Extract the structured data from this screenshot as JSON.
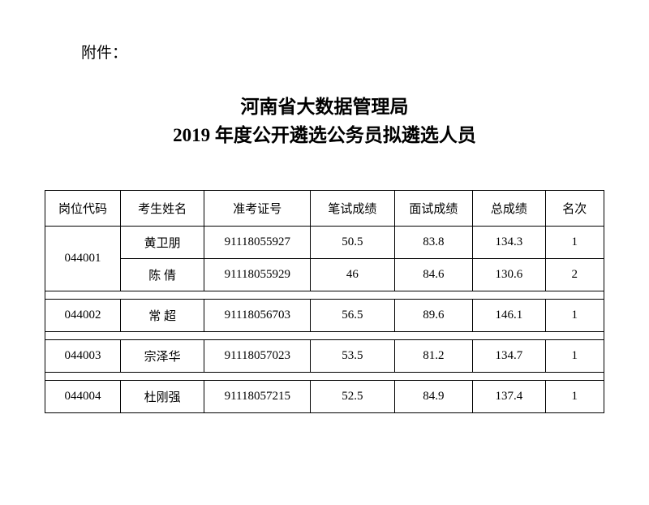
{
  "attachment_label": "附件：",
  "title_line1": "河南省大数据管理局",
  "title_line2": "2019 年度公开遴选公务员拟遴选人员",
  "columns": {
    "code": "岗位代码",
    "name": "考生姓名",
    "exam_no": "准考证号",
    "written": "笔试成绩",
    "interview": "面试成绩",
    "total": "总成绩",
    "rank": "名次"
  },
  "groups": [
    {
      "code": "044001",
      "rows": [
        {
          "name": "黄卫朋",
          "exam_no": "91118055927",
          "written": "50.5",
          "interview": "83.8",
          "total": "134.3",
          "rank": "1"
        },
        {
          "name": "陈 倩",
          "exam_no": "91118055929",
          "written": "46",
          "interview": "84.6",
          "total": "130.6",
          "rank": "2"
        }
      ]
    },
    {
      "code": "044002",
      "rows": [
        {
          "name": "常 超",
          "exam_no": "91118056703",
          "written": "56.5",
          "interview": "89.6",
          "total": "146.1",
          "rank": "1"
        }
      ]
    },
    {
      "code": "044003",
      "rows": [
        {
          "name": "宗泽华",
          "exam_no": "91118057023",
          "written": "53.5",
          "interview": "81.2",
          "total": "134.7",
          "rank": "1"
        }
      ]
    },
    {
      "code": "044004",
      "rows": [
        {
          "name": "杜刚强",
          "exam_no": "91118057215",
          "written": "52.5",
          "interview": "84.9",
          "total": "137.4",
          "rank": "1"
        }
      ]
    }
  ]
}
